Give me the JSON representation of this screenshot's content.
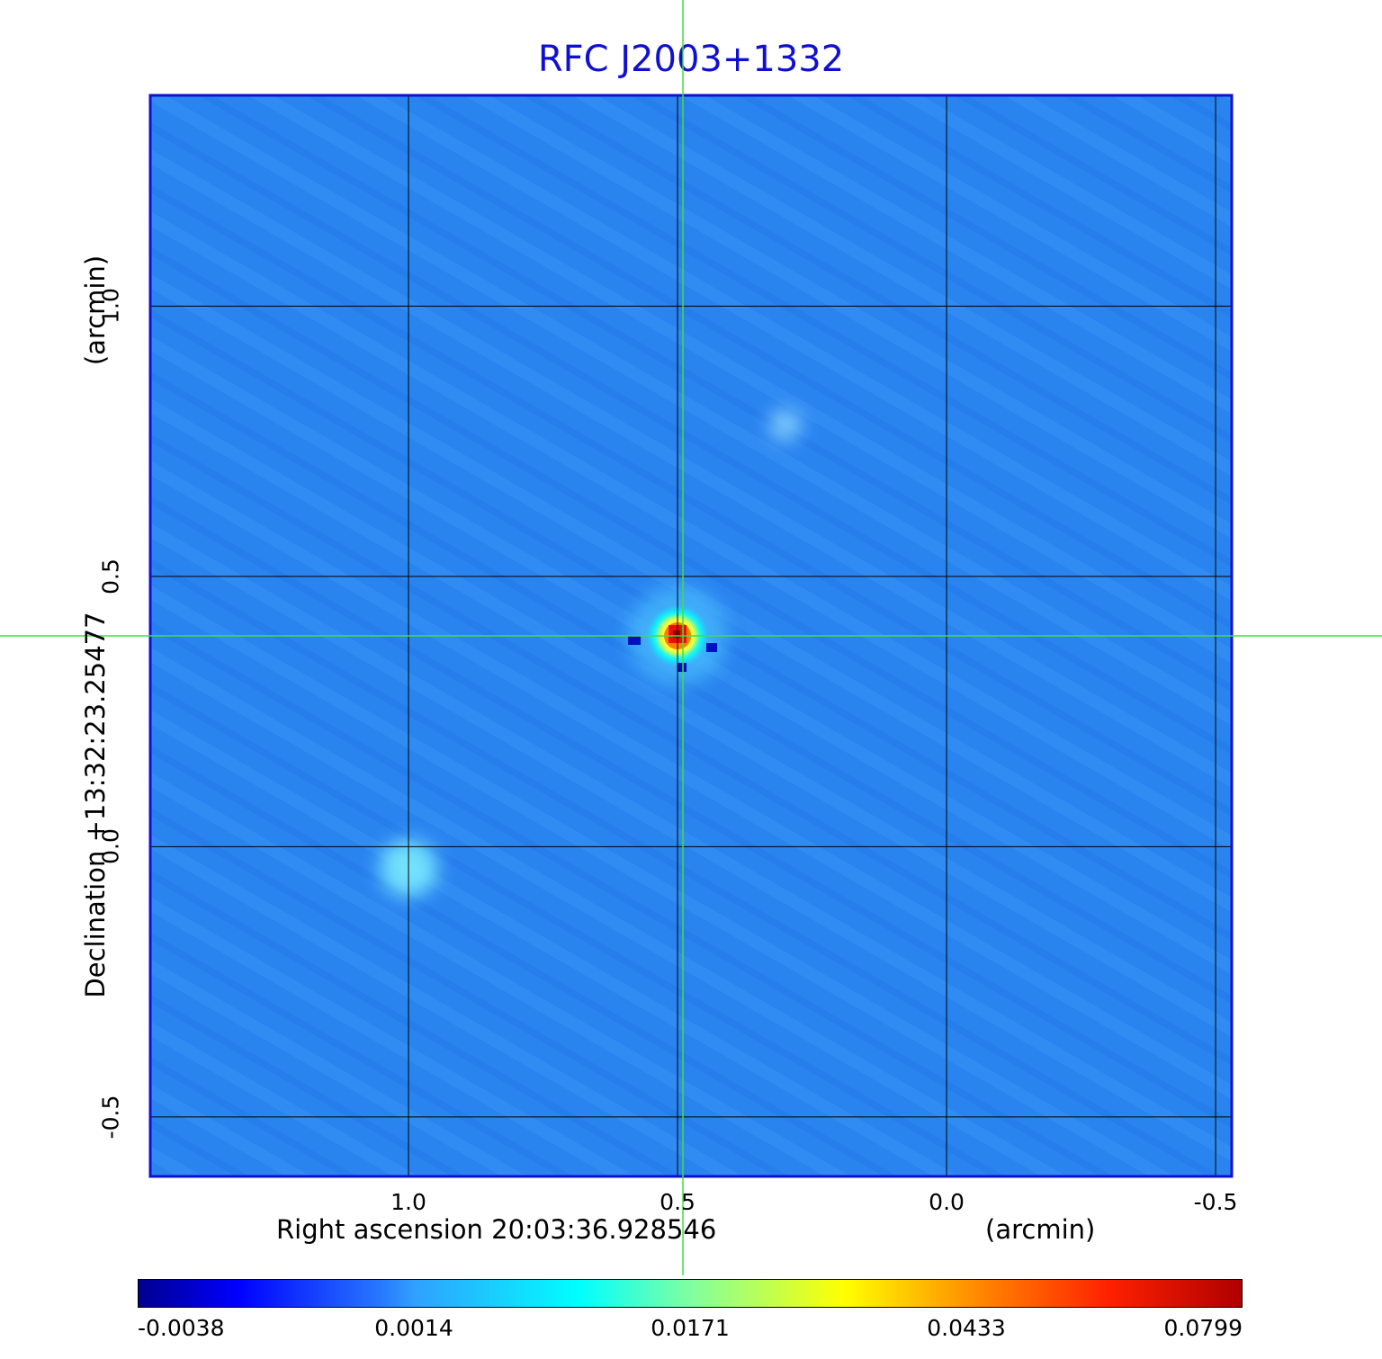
{
  "chart_data": {
    "type": "heatmap",
    "title": "RFC J2003+1332",
    "xlabel": "Right ascension  20:03:36.928546",
    "xunit": "(arcmin)",
    "ylabel": "Declination  +13:32:23.25477",
    "yunit": "(arcmin)",
    "x_ticks": [
      "1.0",
      "0.5",
      "0.0",
      "-0.5"
    ],
    "y_ticks": [
      "1.0",
      "0.5",
      "0.0",
      "-0.5"
    ],
    "xlim": [
      1.48,
      -0.53
    ],
    "ylim": [
      -0.61,
      1.39
    ],
    "grid": true,
    "crosshair": {
      "x": 0.49,
      "y": 0.39
    },
    "sources": [
      {
        "x": 0.5,
        "y": 0.39,
        "peak": 0.0799
      },
      {
        "x": 1.0,
        "y": -0.04,
        "peak": 0.012
      },
      {
        "x": 0.3,
        "y": 0.78,
        "peak": 0.005
      }
    ],
    "colorbar": {
      "ticks": [
        "-0.0038",
        "0.0014",
        "0.0171",
        "0.0433",
        "0.0799"
      ],
      "colormap": "jet"
    },
    "colors": {
      "background_field": "#2a84f0",
      "frame": "#1010d0",
      "crosshair": "#40e040",
      "grid": "#000000"
    }
  }
}
